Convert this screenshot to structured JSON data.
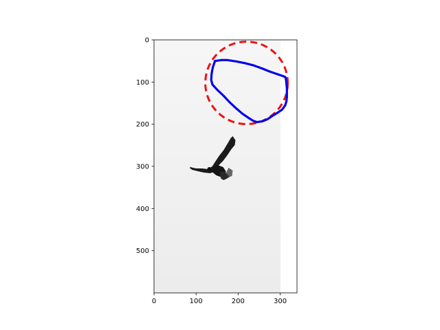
{
  "chart_data": {
    "type": "image",
    "title": "",
    "xlabel": "",
    "ylabel": "",
    "xlim": [
      0,
      340
    ],
    "ylim": [
      600,
      0
    ],
    "image_extent": {
      "width": 300,
      "height": 600
    },
    "x_ticks": [
      0,
      100,
      200,
      300
    ],
    "y_ticks": [
      0,
      100,
      200,
      300,
      400,
      500
    ],
    "grid": false,
    "legend": "none",
    "image_content": "grayscale photo of a soaring bird of prey against a pale sky",
    "overlays": [
      {
        "name": "",
        "kind": "circle",
        "style": "dashed",
        "color": "#ee1111",
        "center": [
          220,
          102
        ],
        "radius": 98
      },
      {
        "name": "",
        "kind": "contour",
        "style": "solid",
        "color": "#0000ee",
        "points": [
          [
            145,
            50
          ],
          [
            160,
            48
          ],
          [
            175,
            48
          ],
          [
            195,
            51
          ],
          [
            215,
            55
          ],
          [
            235,
            60
          ],
          [
            255,
            67
          ],
          [
            275,
            75
          ],
          [
            295,
            82
          ],
          [
            307,
            86
          ],
          [
            312,
            88
          ],
          [
            314,
            95
          ],
          [
            315,
            105
          ],
          [
            316,
            115
          ],
          [
            316,
            125
          ],
          [
            316,
            135
          ],
          [
            315,
            145
          ],
          [
            312,
            155
          ],
          [
            305,
            165
          ],
          [
            295,
            172
          ],
          [
            282,
            180
          ],
          [
            270,
            188
          ],
          [
            258,
            193
          ],
          [
            245,
            195
          ],
          [
            236,
            192
          ],
          [
            225,
            185
          ],
          [
            210,
            175
          ],
          [
            195,
            162
          ],
          [
            180,
            148
          ],
          [
            165,
            132
          ],
          [
            150,
            118
          ],
          [
            139,
            106
          ],
          [
            136,
            95
          ],
          [
            137,
            80
          ],
          [
            140,
            65
          ],
          [
            145,
            50
          ]
        ]
      }
    ]
  }
}
